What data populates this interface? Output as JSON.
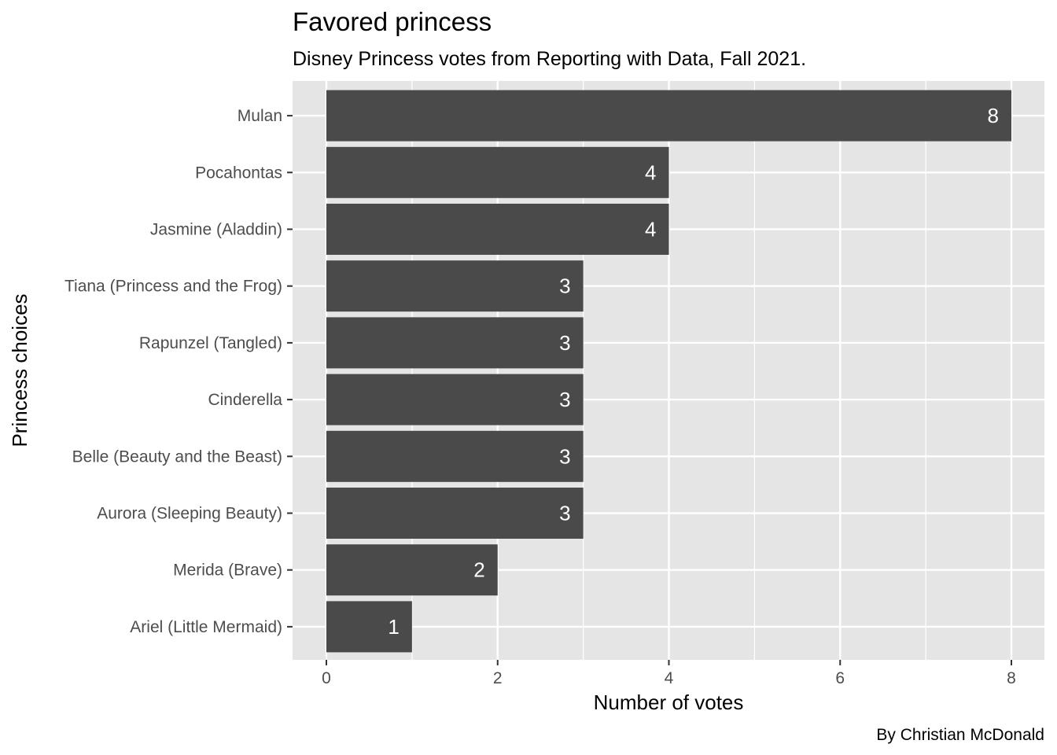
{
  "chart_data": {
    "type": "bar",
    "orientation": "horizontal",
    "title": "Favored princess",
    "subtitle": "Disney Princess votes from Reporting with Data, Fall 2021.",
    "xlabel": "Number of votes",
    "ylabel": "Princess choices",
    "caption": "By Christian McDonald",
    "categories": [
      "Mulan",
      "Pocahontas",
      "Jasmine (Aladdin)",
      "Tiana (Princess and the Frog)",
      "Rapunzel (Tangled)",
      "Cinderella",
      "Belle (Beauty and the Beast)",
      "Aurora (Sleeping Beauty)",
      "Merida (Brave)",
      "Ariel (Little Mermaid)"
    ],
    "values": [
      8,
      4,
      4,
      3,
      3,
      3,
      3,
      3,
      2,
      1
    ],
    "xlim": [
      0,
      8
    ],
    "x_ticks": [
      0,
      2,
      4,
      6,
      8
    ],
    "grid": true,
    "legend": "none",
    "colors": {
      "bar": "#4a4a4a",
      "panel": "#e5e5e5",
      "grid": "#ffffff",
      "bar_label": "#ffffff",
      "tick_text": "#4d4d4d"
    }
  }
}
